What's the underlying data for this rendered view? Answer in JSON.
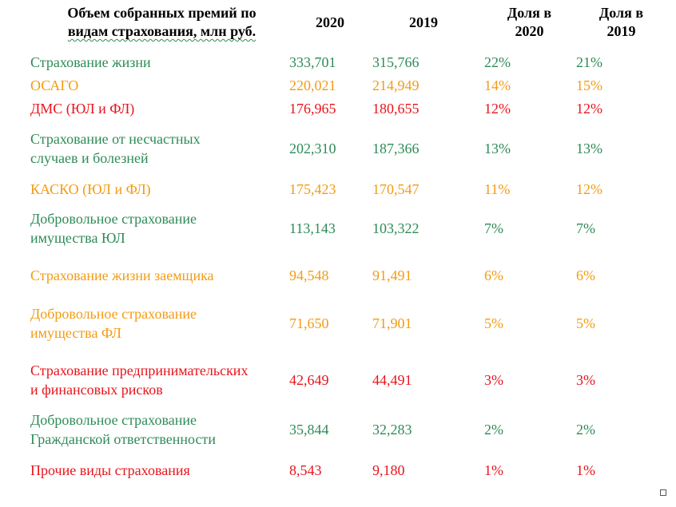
{
  "header": {
    "title_line1": "Объем собранных премий по",
    "title_line2": "видам страхования, млн руб.",
    "col_2020": "2020",
    "col_2019": "2019",
    "share_2020_line1": "Доля в",
    "share_2020_line2": "2020",
    "share_2019_line1": "Доля в",
    "share_2019_line2": "2019"
  },
  "colors": {
    "green": "#2e8b57",
    "orange": "#f39c12",
    "red": "#e8141c"
  },
  "rows": [
    {
      "name_line1": "Страхование жизни",
      "name_line2": "",
      "v2020": "333,701",
      "v2019": "315,766",
      "s2020": "22%",
      "s2019": "21%",
      "color": "green"
    },
    {
      "name_line1": "ОСАГО",
      "name_line2": "",
      "v2020": "220,021",
      "v2019": "214,949",
      "s2020": "14%",
      "s2019": "15%",
      "color": "orange"
    },
    {
      "name_line1": "ДМС (ЮЛ и ФЛ)",
      "name_line2": "",
      "v2020": "176,965",
      "v2019": "180,655",
      "s2020": "12%",
      "s2019": "12%",
      "color": "red"
    },
    {
      "name_line1": "Страхование от несчастных",
      "name_line2": "случаев и болезней",
      "v2020": "202,310",
      "v2019": "187,366",
      "s2020": "13%",
      "s2019": "13%",
      "color": "green"
    },
    {
      "name_line1": "КАСКО (ЮЛ и ФЛ)",
      "name_line2": "",
      "v2020": "175,423",
      "v2019": "170,547",
      "s2020": "11%",
      "s2019": "12%",
      "color": "orange"
    },
    {
      "name_line1": "Добровольное страхование",
      "name_line2": "имущества ЮЛ",
      "v2020": "113,143",
      "v2019": "103,322",
      "s2020": "7%",
      "s2019": "7%",
      "color": "green"
    },
    {
      "name_line1": "Страхование жизни заемщика",
      "name_line2": "",
      "v2020": "94,548",
      "v2019": "91,491",
      "s2020": "6%",
      "s2019": "6%",
      "color": "orange"
    },
    {
      "name_line1": "Добровольное страхование",
      "name_line2": "имущества ФЛ",
      "v2020": "71,650",
      "v2019": "71,901",
      "s2020": "5%",
      "s2019": "5%",
      "color": "orange"
    },
    {
      "name_line1": "Страхование предпринимательских",
      "name_line2": "и финансовых рисков",
      "v2020": "42,649",
      "v2019": "44,491",
      "s2020": "3%",
      "s2019": "3%",
      "color": "red"
    },
    {
      "name_line1": "Добровольное страхование",
      "name_line2": "Гражданской ответственности",
      "v2020": "35,844",
      "v2019": "32,283",
      "s2020": "2%",
      "s2019": "2%",
      "color": "green"
    },
    {
      "name_line1": "Прочие виды страхования",
      "name_line2": "",
      "v2020": "8,543",
      "v2019": "9,180",
      "s2020": "1%",
      "s2019": "1%",
      "color": "red"
    }
  ]
}
